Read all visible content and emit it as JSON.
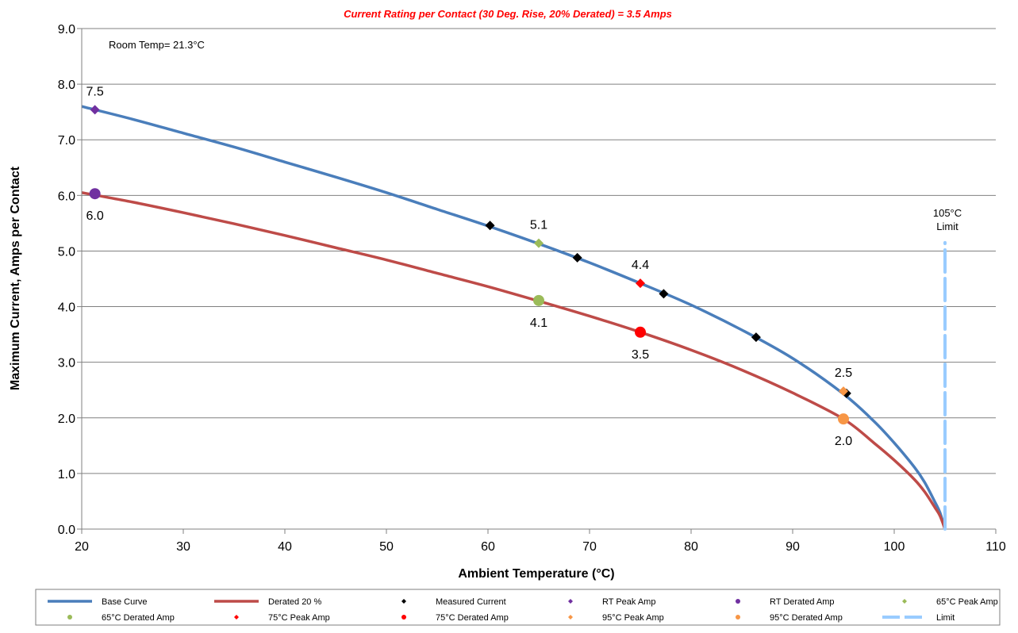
{
  "chart_data": {
    "type": "line",
    "title": "Current Rating per Contact (30 Deg. Rise, 20% Derated)  = 3.5 Amps",
    "xlabel": "Ambient Temperature (°C)",
    "ylabel": "Maximum Current, Amps per Contact",
    "xlim": [
      20,
      110
    ],
    "ylim": [
      0,
      9
    ],
    "x_ticks": [
      20,
      30,
      40,
      50,
      60,
      70,
      80,
      90,
      100,
      110
    ],
    "x_tick_labels": [
      "20",
      "30",
      "40",
      "50",
      "60",
      "70",
      "80",
      "90",
      "100",
      "110"
    ],
    "y_ticks": [
      0,
      1,
      2,
      3,
      4,
      5,
      6,
      7,
      8,
      9
    ],
    "y_tick_labels": [
      "0.0",
      "1.0",
      "2.0",
      "3.0",
      "4.0",
      "5.0",
      "6.0",
      "7.0",
      "8.0",
      "9.0"
    ],
    "grid": "horizontal",
    "legend_position": "bottom",
    "annotation": "Room Temp= 21.3°C",
    "limit_label": [
      "105°C",
      "Limit"
    ],
    "series": [
      {
        "name": "Base Curve",
        "kind": "line",
        "color": "#4a7ebb",
        "x": [
          20,
          25,
          30,
          35,
          40,
          45,
          50,
          55,
          60,
          65,
          70,
          75,
          80,
          85,
          90,
          95,
          98,
          100,
          102,
          103,
          104,
          104.5,
          105
        ],
        "y": [
          7.6,
          7.37,
          7.12,
          6.87,
          6.6,
          6.33,
          6.05,
          5.75,
          5.45,
          5.13,
          4.79,
          4.42,
          4.03,
          3.58,
          3.07,
          2.43,
          1.94,
          1.55,
          1.11,
          0.84,
          0.49,
          0.3,
          0.0
        ]
      },
      {
        "name": "Derated 20 %",
        "kind": "line",
        "color": "#be4b48",
        "x": [
          20,
          25,
          30,
          35,
          40,
          45,
          50,
          55,
          60,
          65,
          70,
          75,
          80,
          85,
          90,
          95,
          98,
          100,
          102,
          103,
          104,
          104.5,
          105
        ],
        "y": [
          6.05,
          5.88,
          5.69,
          5.49,
          5.28,
          5.06,
          4.84,
          4.6,
          4.36,
          4.1,
          3.83,
          3.54,
          3.22,
          2.86,
          2.45,
          1.98,
          1.55,
          1.24,
          0.89,
          0.67,
          0.39,
          0.24,
          0.0
        ]
      },
      {
        "name": "Measured Current",
        "kind": "marker",
        "marker": "diamond",
        "color": "#000000",
        "x": [
          60.2,
          68.8,
          77.3,
          86.4,
          95.3
        ],
        "y": [
          5.46,
          4.88,
          4.23,
          3.45,
          2.44
        ]
      },
      {
        "name": "RT Peak Amp",
        "kind": "marker",
        "marker": "diamond",
        "color": "#7030a0",
        "x": [
          21.3
        ],
        "y": [
          7.54
        ],
        "labels": [
          "7.5"
        ],
        "label_pos": "above"
      },
      {
        "name": "RT Derated Amp",
        "kind": "marker",
        "marker": "circle",
        "color": "#7030a0",
        "x": [
          21.3
        ],
        "y": [
          6.03
        ],
        "labels": [
          "6.0"
        ],
        "label_pos": "below"
      },
      {
        "name": "65°C Peak Amp",
        "kind": "marker",
        "marker": "diamond",
        "color": "#9bbb59",
        "x": [
          65
        ],
        "y": [
          5.14
        ],
        "labels": [
          "5.1"
        ],
        "label_pos": "above"
      },
      {
        "name": "65°C Derated Amp",
        "kind": "marker",
        "marker": "circle",
        "color": "#9bbb59",
        "x": [
          65
        ],
        "y": [
          4.11
        ],
        "labels": [
          "4.1"
        ],
        "label_pos": "below"
      },
      {
        "name": "75°C Peak Amp",
        "kind": "marker",
        "marker": "diamond",
        "color": "#ff0000",
        "x": [
          75
        ],
        "y": [
          4.42
        ],
        "labels": [
          "4.4"
        ],
        "label_pos": "above"
      },
      {
        "name": "75°C Derated Amp",
        "kind": "marker",
        "marker": "circle",
        "color": "#ff0000",
        "x": [
          75
        ],
        "y": [
          3.54
        ],
        "labels": [
          "3.5"
        ],
        "label_pos": "below"
      },
      {
        "name": "95°C Peak Amp",
        "kind": "marker",
        "marker": "diamond",
        "color": "#f79646",
        "x": [
          95
        ],
        "y": [
          2.48
        ],
        "labels": [
          "2.5"
        ],
        "label_pos": "above"
      },
      {
        "name": "95°C Derated Amp",
        "kind": "marker",
        "marker": "circle",
        "color": "#f79646",
        "x": [
          95
        ],
        "y": [
          1.98
        ],
        "labels": [
          "2.0"
        ],
        "label_pos": "below"
      },
      {
        "name": "Limit",
        "kind": "dashed-line",
        "color": "#99ccff",
        "x": [
          105,
          105
        ],
        "y": [
          0,
          5.15
        ]
      }
    ]
  }
}
